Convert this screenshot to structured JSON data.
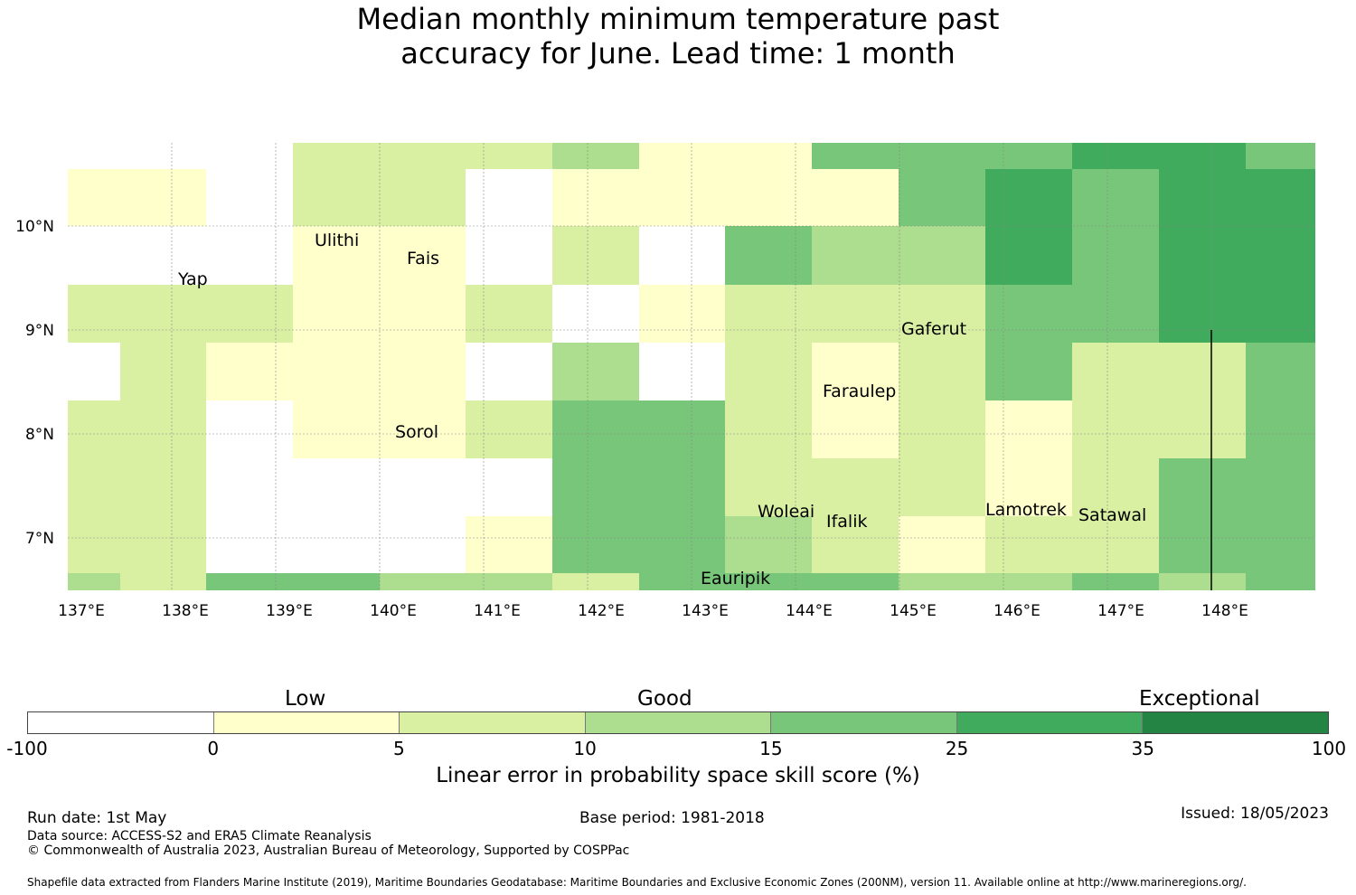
{
  "title_line1": "Median monthly minimum temperature past",
  "title_line2": "accuracy for June. Lead time: 1 month",
  "map": {
    "lon_range": [
      137.0,
      149.0
    ],
    "lat_range": [
      6.5,
      10.8
    ],
    "lon_ticks": [
      "137°E",
      "138°E",
      "139°E",
      "140°E",
      "141°E",
      "142°E",
      "143°E",
      "144°E",
      "145°E",
      "146°E",
      "147°E",
      "148°E"
    ],
    "lat_ticks": [
      "10°N",
      "9°N",
      "8°N",
      "7°N"
    ],
    "islands": [
      {
        "name": "Ulithi"
      },
      {
        "name": "Fais"
      },
      {
        "name": "Yap"
      },
      {
        "name": "Gaferut"
      },
      {
        "name": "Faraulep"
      },
      {
        "name": "Sorol"
      },
      {
        "name": "Woleai"
      },
      {
        "name": "Ifalik"
      },
      {
        "name": "Lamotrek"
      },
      {
        "name": "Satawal"
      },
      {
        "name": "Eauripik"
      }
    ],
    "cell_category_rows": [
      "00000000000",
      "..."
    ]
  },
  "colorbar": {
    "colors": [
      "#ffffff",
      "#ffffcc",
      "#d9f0a3",
      "#addd8e",
      "#78c679",
      "#41ab5d",
      "#238443"
    ],
    "boundaries": [
      "-100",
      "0",
      "5",
      "10",
      "15",
      "25",
      "35",
      "100"
    ],
    "category_labels": [
      "Low",
      "Good",
      "Exceptional"
    ],
    "title": "Linear error in probability space skill score (%)"
  },
  "footer": {
    "run_date": "Run date: 1st May",
    "base_period": "Base period: 1981-2018",
    "issued": "Issued: 18/05/2023",
    "data_source": "Data source: ACCESS-S2 and ERA5 Climate Reanalysis",
    "copyright": "© Commonwealth of Australia 2023, Australian Bureau of Meteorology, Supported by COSPPac",
    "shapefile": "Shapefile data extracted from Flanders Marine Institute (2019), Maritime Boundaries Geodatabase: Maritime Boundaries and Exclusive Economic Zones (200NM), version 11. Available online at http://www.marineregions.org/."
  }
}
